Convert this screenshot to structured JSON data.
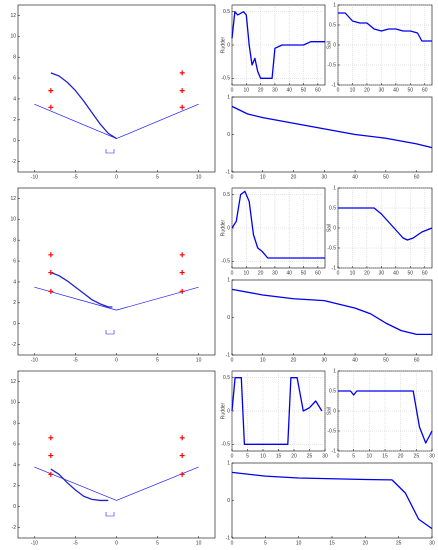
{
  "chart_data": [
    {
      "type": "line",
      "xlim": [
        -12,
        12
      ],
      "xticks": [
        -10,
        -5,
        0,
        5,
        10
      ],
      "ylim": [
        -3,
        13
      ],
      "yticks": [
        -2,
        0,
        2,
        4,
        6,
        8,
        10,
        12
      ],
      "grid": false,
      "series": [
        {
          "style": "line",
          "color": "#1a1aff",
          "x": [
            -10,
            0,
            10
          ],
          "values": [
            3.5,
            0.2,
            3.5
          ]
        },
        {
          "style": "thick",
          "color": "#2222cc",
          "x": [
            -8,
            -7,
            -6,
            -5,
            -4,
            -3,
            -2,
            -1,
            0
          ],
          "values": [
            6.5,
            6.2,
            5.6,
            4.8,
            3.8,
            2.7,
            1.6,
            0.7,
            0.2
          ]
        },
        {
          "style": "plus",
          "color": "#ff0000",
          "x": [
            -8,
            -8,
            8,
            8,
            8
          ],
          "values": [
            3.2,
            4.8,
            3.2,
            4.8,
            6.5
          ]
        }
      ]
    },
    {
      "type": "line",
      "ylabel": "Rudder",
      "xlim": [
        0,
        65
      ],
      "xticks": [
        0,
        10,
        20,
        30,
        40,
        50,
        60
      ],
      "ylim": [
        -0.6,
        0.6
      ],
      "yticks": [
        -0.5,
        0,
        0.5
      ],
      "grid": true,
      "series": [
        {
          "style": "thick",
          "color": "#0000ee",
          "x": [
            0,
            2,
            4,
            8,
            10,
            12,
            14,
            16,
            18,
            20,
            24,
            28,
            30,
            35,
            40,
            45,
            50,
            55,
            60,
            65
          ],
          "values": [
            0.1,
            0.5,
            0.45,
            0.5,
            0.45,
            0,
            -0.3,
            -0.2,
            -0.4,
            -0.5,
            -0.5,
            -0.5,
            -0.05,
            0,
            0,
            0,
            0,
            0.05,
            0.05,
            0.05
          ]
        }
      ]
    },
    {
      "type": "line",
      "ylabel": "Sail",
      "xlim": [
        0,
        65
      ],
      "xticks": [
        0,
        10,
        20,
        30,
        40,
        50,
        60
      ],
      "ylim": [
        -1,
        1
      ],
      "yticks": [
        -1,
        -0.5,
        0,
        0.5,
        1
      ],
      "grid": true,
      "series": [
        {
          "style": "thick",
          "color": "#0000ee",
          "x": [
            0,
            5,
            10,
            15,
            20,
            25,
            30,
            35,
            40,
            45,
            50,
            55,
            58,
            65
          ],
          "values": [
            0.8,
            0.8,
            0.6,
            0.55,
            0.55,
            0.4,
            0.35,
            0.4,
            0.4,
            0.35,
            0.35,
            0.3,
            0.1,
            0.1
          ]
        }
      ]
    },
    {
      "type": "line",
      "xlim": [
        0,
        65
      ],
      "xticks": [
        0,
        10,
        20,
        30,
        40,
        50,
        60
      ],
      "ylim": [
        -1,
        1
      ],
      "yticks": [
        -1,
        0,
        1
      ],
      "grid": false,
      "series": [
        {
          "style": "thick",
          "color": "#0000ee",
          "x": [
            0,
            5,
            10,
            20,
            30,
            40,
            50,
            60,
            65
          ],
          "values": [
            0.75,
            0.55,
            0.45,
            0.3,
            0.15,
            0.0,
            -0.1,
            -0.25,
            -0.35
          ]
        }
      ]
    },
    {
      "type": "line",
      "xlim": [
        -12,
        12
      ],
      "xticks": [
        -10,
        -5,
        0,
        5,
        10
      ],
      "ylim": [
        -3,
        13
      ],
      "yticks": [
        -2,
        0,
        2,
        4,
        6,
        8,
        10,
        12
      ],
      "grid": false,
      "series": [
        {
          "style": "line",
          "color": "#1a1aff",
          "x": [
            -10,
            0,
            10
          ],
          "values": [
            3.5,
            1.3,
            3.5
          ]
        },
        {
          "style": "thick",
          "color": "#2222cc",
          "x": [
            -8,
            -7,
            -6,
            -5,
            -4,
            -3,
            -2,
            -1,
            -0.5
          ],
          "values": [
            4.9,
            4.6,
            4.1,
            3.5,
            2.9,
            2.3,
            1.9,
            1.6,
            1.6
          ]
        },
        {
          "style": "plus",
          "color": "#ff0000",
          "x": [
            -8,
            -8,
            -8,
            8,
            8,
            8
          ],
          "values": [
            3.1,
            4.9,
            6.6,
            3.1,
            4.9,
            6.6
          ]
        }
      ]
    },
    {
      "type": "line",
      "ylabel": "Rudder",
      "xlim": [
        0,
        65
      ],
      "xticks": [
        0,
        10,
        20,
        30,
        40,
        50,
        60
      ],
      "ylim": [
        -0.6,
        0.6
      ],
      "yticks": [
        -0.5,
        0,
        0.5
      ],
      "grid": true,
      "series": [
        {
          "style": "thick",
          "color": "#0000ee",
          "x": [
            0,
            3,
            6,
            9,
            12,
            15,
            18,
            21,
            25,
            30,
            40,
            50,
            60,
            65
          ],
          "values": [
            0,
            0.1,
            0.5,
            0.55,
            0.4,
            -0.1,
            -0.3,
            -0.35,
            -0.45,
            -0.45,
            -0.45,
            -0.45,
            -0.45,
            -0.45
          ]
        }
      ]
    },
    {
      "type": "line",
      "ylabel": "Sail",
      "xlim": [
        0,
        65
      ],
      "xticks": [
        0,
        10,
        20,
        30,
        40,
        50,
        60
      ],
      "ylim": [
        -1,
        1
      ],
      "yticks": [
        -1,
        -0.5,
        0,
        0.5,
        1
      ],
      "grid": true,
      "series": [
        {
          "style": "thick",
          "color": "#0000ee",
          "x": [
            0,
            10,
            20,
            25,
            30,
            35,
            40,
            45,
            48,
            52,
            58,
            65
          ],
          "values": [
            0.5,
            0.5,
            0.5,
            0.5,
            0.35,
            0.15,
            -0.05,
            -0.25,
            -0.3,
            -0.25,
            -0.1,
            0
          ]
        }
      ]
    },
    {
      "type": "line",
      "xlim": [
        0,
        65
      ],
      "xticks": [
        0,
        10,
        20,
        30,
        40,
        50,
        60
      ],
      "ylim": [
        -1,
        1
      ],
      "yticks": [
        -1,
        0,
        1
      ],
      "grid": false,
      "series": [
        {
          "style": "thick",
          "color": "#0000ee",
          "x": [
            0,
            10,
            20,
            30,
            40,
            45,
            50,
            55,
            60,
            65
          ],
          "values": [
            0.75,
            0.6,
            0.5,
            0.45,
            0.25,
            0.1,
            -0.15,
            -0.35,
            -0.45,
            -0.45
          ]
        }
      ]
    },
    {
      "type": "line",
      "xlim": [
        -12,
        12
      ],
      "xticks": [
        -10,
        -5,
        0,
        5,
        10
      ],
      "ylim": [
        -3,
        13
      ],
      "yticks": [
        -2,
        0,
        2,
        4,
        6,
        8,
        10,
        12
      ],
      "grid": false,
      "series": [
        {
          "style": "line",
          "color": "#1a1aff",
          "x": [
            -10,
            0,
            10
          ],
          "values": [
            3.8,
            0.6,
            3.8
          ]
        },
        {
          "style": "thick",
          "color": "#2222cc",
          "x": [
            -8,
            -7,
            -6,
            -5,
            -4,
            -3,
            -2,
            -1
          ],
          "values": [
            3.6,
            3.1,
            2.3,
            1.6,
            1.0,
            0.7,
            0.6,
            0.6
          ]
        },
        {
          "style": "plus",
          "color": "#ff0000",
          "x": [
            -8,
            -8,
            -8,
            8,
            8,
            8
          ],
          "values": [
            3.1,
            4.9,
            6.6,
            3.1,
            4.9,
            6.6
          ]
        }
      ]
    },
    {
      "type": "line",
      "ylabel": "Rudder",
      "xlim": [
        0,
        30
      ],
      "xticks": [
        0,
        5,
        10,
        15,
        20,
        25,
        30
      ],
      "ylim": [
        -0.6,
        0.6
      ],
      "yticks": [
        -0.5,
        0,
        0.5
      ],
      "grid": true,
      "series": [
        {
          "style": "thick",
          "color": "#0000ee",
          "x": [
            0,
            1,
            3,
            4,
            18,
            19,
            21,
            23,
            25,
            27,
            29
          ],
          "values": [
            0,
            0.5,
            0.5,
            -0.5,
            -0.5,
            0.5,
            0.5,
            0,
            0.05,
            0.15,
            0
          ]
        }
      ]
    },
    {
      "type": "line",
      "ylabel": "Sail",
      "xlim": [
        0,
        30
      ],
      "xticks": [
        0,
        5,
        10,
        15,
        20,
        25,
        30
      ],
      "ylim": [
        -1,
        1
      ],
      "yticks": [
        -1,
        -0.5,
        0,
        0.5,
        1
      ],
      "grid": true,
      "series": [
        {
          "style": "thick",
          "color": "#0000ee",
          "x": [
            0,
            4,
            5,
            6,
            10,
            20,
            24,
            26,
            28,
            30
          ],
          "values": [
            0.5,
            0.5,
            0.4,
            0.5,
            0.5,
            0.5,
            0.5,
            -0.4,
            -0.8,
            -0.5
          ]
        }
      ]
    },
    {
      "type": "line",
      "xlim": [
        0,
        30
      ],
      "xticks": [
        0,
        5,
        10,
        15,
        20,
        25,
        30
      ],
      "ylim": [
        -1,
        1
      ],
      "yticks": [
        -1,
        0,
        1
      ],
      "grid": false,
      "series": [
        {
          "style": "thick",
          "color": "#0000ee",
          "x": [
            0,
            5,
            10,
            15,
            20,
            24,
            26,
            28,
            30
          ],
          "values": [
            0.75,
            0.65,
            0.6,
            0.58,
            0.56,
            0.55,
            0.2,
            -0.5,
            -0.75
          ]
        }
      ]
    }
  ]
}
